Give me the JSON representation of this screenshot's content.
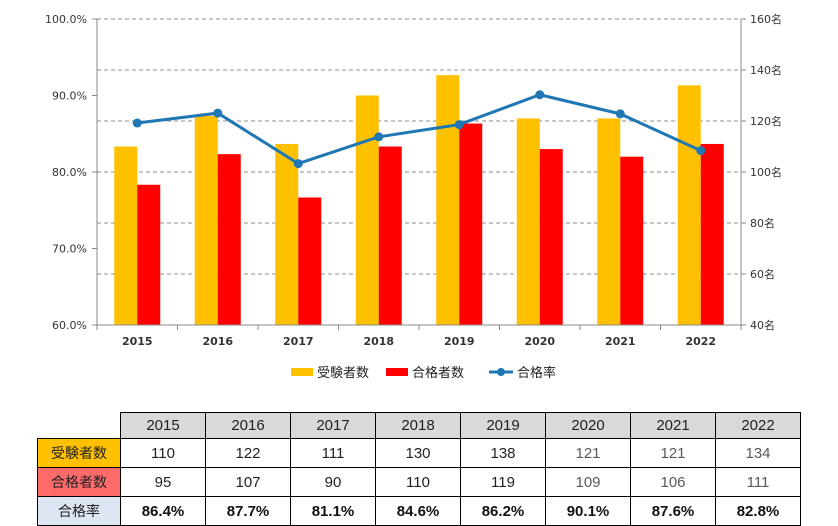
{
  "chart_data": {
    "type": "bar+line",
    "categories": [
      "2015",
      "2016",
      "2017",
      "2018",
      "2019",
      "2020",
      "2021",
      "2022"
    ],
    "series": [
      {
        "name": "受験者数",
        "type": "bar",
        "axis": "right",
        "color": "#FFC000",
        "values": [
          110,
          122,
          111,
          130,
          138,
          121,
          121,
          134
        ]
      },
      {
        "name": "合格者数",
        "type": "bar",
        "axis": "right",
        "color": "#FF0000",
        "values": [
          95,
          107,
          90,
          110,
          119,
          109,
          106,
          111
        ]
      },
      {
        "name": "合格率",
        "type": "line",
        "axis": "left",
        "color": "#1F77B4",
        "values": [
          86.4,
          87.7,
          81.1,
          84.6,
          86.2,
          90.1,
          87.6,
          82.8
        ]
      }
    ],
    "left_axis": {
      "min": 60,
      "max": 100,
      "step": 10,
      "tick_labels": [
        "60.0%",
        "70.0%",
        "80.0%",
        "90.0%",
        "100.0%"
      ]
    },
    "right_axis": {
      "min": 40,
      "max": 160,
      "step": 20,
      "tick_labels": [
        "40名",
        "60名",
        "80名",
        "100名",
        "120名",
        "140名",
        "160名"
      ]
    },
    "legend": [
      "受験者数",
      "合格者数",
      "合格率"
    ],
    "legend_position": "bottom",
    "grid": "dashed horizontal"
  },
  "table": {
    "years": [
      "2015",
      "2016",
      "2017",
      "2018",
      "2019",
      "2020",
      "2021",
      "2022"
    ],
    "rows": [
      {
        "label": "受験者数",
        "color": "#FFC000",
        "values": [
          "110",
          "122",
          "111",
          "130",
          "138",
          "121",
          "121",
          "134"
        ],
        "style": "num"
      },
      {
        "label": "合格者数",
        "color": "#FF6B6B",
        "values": [
          "95",
          "107",
          "90",
          "110",
          "119",
          "109",
          "106",
          "111"
        ],
        "style": "num"
      },
      {
        "label": "合格率",
        "color": "#DDE6F2",
        "values": [
          "86.4%",
          "87.7%",
          "81.1%",
          "84.6%",
          "86.2%",
          "90.1%",
          "87.6%",
          "82.8%"
        ],
        "style": "rate"
      }
    ]
  }
}
